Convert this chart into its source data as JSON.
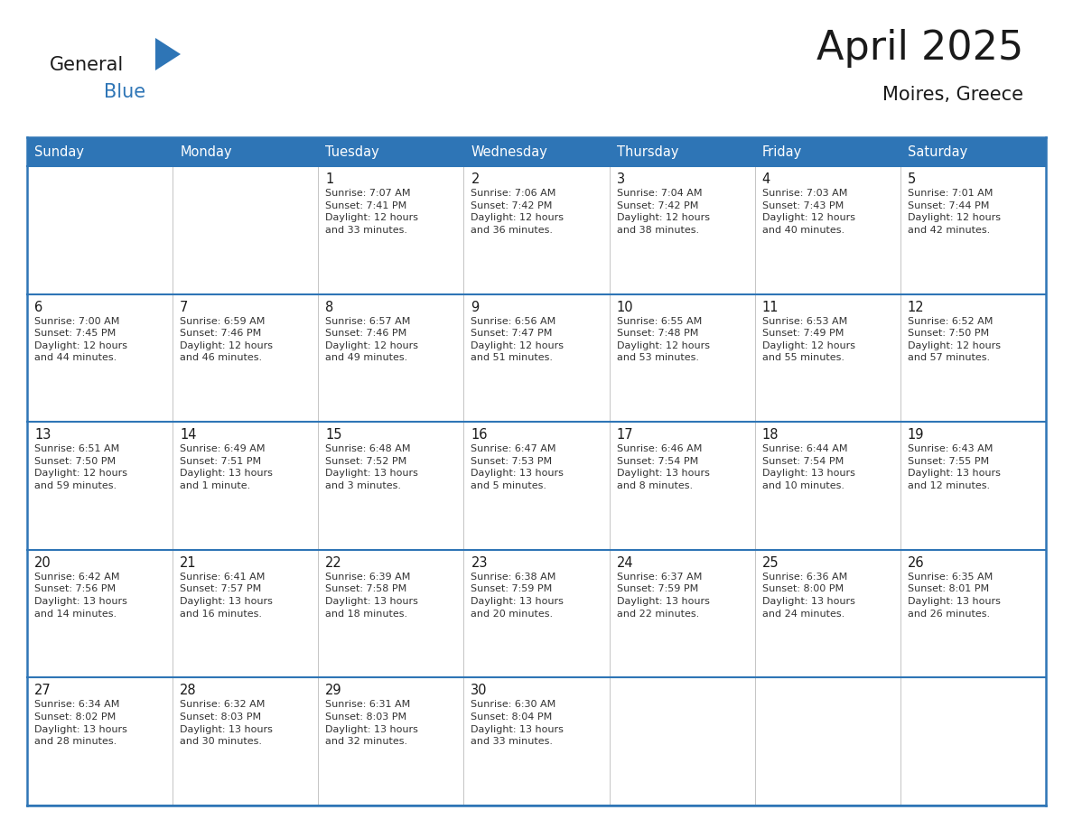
{
  "title": "April 2025",
  "subtitle": "Moires, Greece",
  "header_bg": "#2E75B6",
  "header_text_color": "#FFFFFF",
  "border_color": "#2E75B6",
  "cell_line_color": "#AAAAAA",
  "days_of_week": [
    "Sunday",
    "Monday",
    "Tuesday",
    "Wednesday",
    "Thursday",
    "Friday",
    "Saturday"
  ],
  "weeks": [
    [
      {
        "day": "",
        "info": ""
      },
      {
        "day": "",
        "info": ""
      },
      {
        "day": "1",
        "info": "Sunrise: 7:07 AM\nSunset: 7:41 PM\nDaylight: 12 hours\nand 33 minutes."
      },
      {
        "day": "2",
        "info": "Sunrise: 7:06 AM\nSunset: 7:42 PM\nDaylight: 12 hours\nand 36 minutes."
      },
      {
        "day": "3",
        "info": "Sunrise: 7:04 AM\nSunset: 7:42 PM\nDaylight: 12 hours\nand 38 minutes."
      },
      {
        "day": "4",
        "info": "Sunrise: 7:03 AM\nSunset: 7:43 PM\nDaylight: 12 hours\nand 40 minutes."
      },
      {
        "day": "5",
        "info": "Sunrise: 7:01 AM\nSunset: 7:44 PM\nDaylight: 12 hours\nand 42 minutes."
      }
    ],
    [
      {
        "day": "6",
        "info": "Sunrise: 7:00 AM\nSunset: 7:45 PM\nDaylight: 12 hours\nand 44 minutes."
      },
      {
        "day": "7",
        "info": "Sunrise: 6:59 AM\nSunset: 7:46 PM\nDaylight: 12 hours\nand 46 minutes."
      },
      {
        "day": "8",
        "info": "Sunrise: 6:57 AM\nSunset: 7:46 PM\nDaylight: 12 hours\nand 49 minutes."
      },
      {
        "day": "9",
        "info": "Sunrise: 6:56 AM\nSunset: 7:47 PM\nDaylight: 12 hours\nand 51 minutes."
      },
      {
        "day": "10",
        "info": "Sunrise: 6:55 AM\nSunset: 7:48 PM\nDaylight: 12 hours\nand 53 minutes."
      },
      {
        "day": "11",
        "info": "Sunrise: 6:53 AM\nSunset: 7:49 PM\nDaylight: 12 hours\nand 55 minutes."
      },
      {
        "day": "12",
        "info": "Sunrise: 6:52 AM\nSunset: 7:50 PM\nDaylight: 12 hours\nand 57 minutes."
      }
    ],
    [
      {
        "day": "13",
        "info": "Sunrise: 6:51 AM\nSunset: 7:50 PM\nDaylight: 12 hours\nand 59 minutes."
      },
      {
        "day": "14",
        "info": "Sunrise: 6:49 AM\nSunset: 7:51 PM\nDaylight: 13 hours\nand 1 minute."
      },
      {
        "day": "15",
        "info": "Sunrise: 6:48 AM\nSunset: 7:52 PM\nDaylight: 13 hours\nand 3 minutes."
      },
      {
        "day": "16",
        "info": "Sunrise: 6:47 AM\nSunset: 7:53 PM\nDaylight: 13 hours\nand 5 minutes."
      },
      {
        "day": "17",
        "info": "Sunrise: 6:46 AM\nSunset: 7:54 PM\nDaylight: 13 hours\nand 8 minutes."
      },
      {
        "day": "18",
        "info": "Sunrise: 6:44 AM\nSunset: 7:54 PM\nDaylight: 13 hours\nand 10 minutes."
      },
      {
        "day": "19",
        "info": "Sunrise: 6:43 AM\nSunset: 7:55 PM\nDaylight: 13 hours\nand 12 minutes."
      }
    ],
    [
      {
        "day": "20",
        "info": "Sunrise: 6:42 AM\nSunset: 7:56 PM\nDaylight: 13 hours\nand 14 minutes."
      },
      {
        "day": "21",
        "info": "Sunrise: 6:41 AM\nSunset: 7:57 PM\nDaylight: 13 hours\nand 16 minutes."
      },
      {
        "day": "22",
        "info": "Sunrise: 6:39 AM\nSunset: 7:58 PM\nDaylight: 13 hours\nand 18 minutes."
      },
      {
        "day": "23",
        "info": "Sunrise: 6:38 AM\nSunset: 7:59 PM\nDaylight: 13 hours\nand 20 minutes."
      },
      {
        "day": "24",
        "info": "Sunrise: 6:37 AM\nSunset: 7:59 PM\nDaylight: 13 hours\nand 22 minutes."
      },
      {
        "day": "25",
        "info": "Sunrise: 6:36 AM\nSunset: 8:00 PM\nDaylight: 13 hours\nand 24 minutes."
      },
      {
        "day": "26",
        "info": "Sunrise: 6:35 AM\nSunset: 8:01 PM\nDaylight: 13 hours\nand 26 minutes."
      }
    ],
    [
      {
        "day": "27",
        "info": "Sunrise: 6:34 AM\nSunset: 8:02 PM\nDaylight: 13 hours\nand 28 minutes."
      },
      {
        "day": "28",
        "info": "Sunrise: 6:32 AM\nSunset: 8:03 PM\nDaylight: 13 hours\nand 30 minutes."
      },
      {
        "day": "29",
        "info": "Sunrise: 6:31 AM\nSunset: 8:03 PM\nDaylight: 13 hours\nand 32 minutes."
      },
      {
        "day": "30",
        "info": "Sunrise: 6:30 AM\nSunset: 8:04 PM\nDaylight: 13 hours\nand 33 minutes."
      },
      {
        "day": "",
        "info": ""
      },
      {
        "day": "",
        "info": ""
      },
      {
        "day": "",
        "info": ""
      }
    ]
  ],
  "logo_text_general": "General",
  "logo_text_blue": "Blue",
  "logo_triangle_color": "#2E75B6",
  "logo_general_color": "#1a1a1a"
}
